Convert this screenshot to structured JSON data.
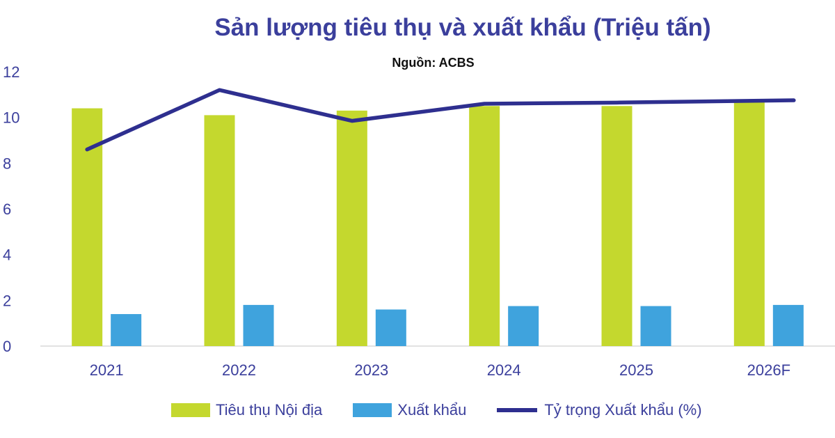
{
  "chart_data": {
    "type": "bar",
    "title": "Sản lượng tiêu thụ và xuất khẩu (Triệu tấn)",
    "subtitle": "Nguồn: ACBS",
    "categories": [
      "2021",
      "2022",
      "2023",
      "2024",
      "2025",
      "2026F"
    ],
    "ylim": [
      0,
      12
    ],
    "yticks": [
      "0",
      "2",
      "4",
      "6",
      "8",
      "10",
      "12"
    ],
    "grid": false,
    "legend_position": "bottom",
    "series": [
      {
        "name": "Tiêu thụ Nội địa",
        "type": "bar",
        "color": "#c4d82e",
        "values": [
          10.4,
          10.1,
          10.3,
          10.5,
          10.5,
          10.7
        ]
      },
      {
        "name": "Xuất khẩu",
        "type": "bar",
        "color": "#3fa3dd",
        "values": [
          1.4,
          1.8,
          1.6,
          1.75,
          1.75,
          1.8
        ]
      },
      {
        "name": "Tỷ trọng Xuất khẩu (%)",
        "type": "line",
        "color": "#2e2f8f",
        "values": [
          8.6,
          11.2,
          9.85,
          10.6,
          10.65,
          10.75
        ]
      }
    ]
  }
}
